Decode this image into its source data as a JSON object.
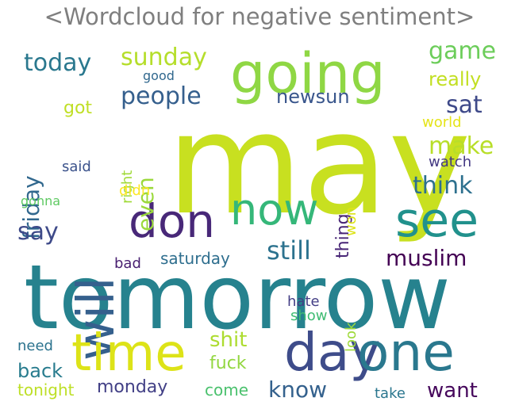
{
  "title": "<Wordcloud for negative sentiment>",
  "words": [
    {
      "text": "may",
      "color": "#c8e020"
    },
    {
      "text": "tomorrow",
      "color": "#26828e"
    },
    {
      "text": "going",
      "color": "#8fd744"
    },
    {
      "text": "will",
      "color": "#35608d"
    },
    {
      "text": "time",
      "color": "#dde318"
    },
    {
      "text": "day",
      "color": "#3e4c8a"
    },
    {
      "text": "one",
      "color": "#2a788e"
    },
    {
      "text": "now",
      "color": "#35b779"
    },
    {
      "text": "see",
      "color": "#21918c"
    },
    {
      "text": "don",
      "color": "#482878"
    },
    {
      "text": "today",
      "color": "#2a788e"
    },
    {
      "text": "sunday",
      "color": "#b5de2b"
    },
    {
      "text": "people",
      "color": "#355f8d"
    },
    {
      "text": "game",
      "color": "#6ccd5a"
    },
    {
      "text": "really",
      "color": "#c2df23"
    },
    {
      "text": "newsun",
      "color": "#39568c"
    },
    {
      "text": "sat",
      "color": "#3e4989"
    },
    {
      "text": "friday",
      "color": "#31688e"
    },
    {
      "text": "got",
      "color": "#c0df25"
    },
    {
      "text": "even",
      "color": "#9bd93c"
    },
    {
      "text": "make",
      "color": "#b8de29"
    },
    {
      "text": "world",
      "color": "#e5e419"
    },
    {
      "text": "said",
      "color": "#3b528b"
    },
    {
      "text": "right",
      "color": "#a0da39"
    },
    {
      "text": "didn",
      "color": "#fde725"
    },
    {
      "text": "watch",
      "color": "#443983"
    },
    {
      "text": "think",
      "color": "#2d708e"
    },
    {
      "text": "thing",
      "color": "#482576"
    },
    {
      "text": "won",
      "color": "#dde318"
    },
    {
      "text": "gonna",
      "color": "#5ec962"
    },
    {
      "text": "say",
      "color": "#3e4a89"
    },
    {
      "text": "still",
      "color": "#2c728e"
    },
    {
      "text": "saturday",
      "color": "#2e6e8e"
    },
    {
      "text": "muslim",
      "color": "#440154"
    },
    {
      "text": "bad",
      "color": "#481f70"
    },
    {
      "text": "hate",
      "color": "#433e85"
    },
    {
      "text": "show",
      "color": "#3fbc73"
    },
    {
      "text": "look",
      "color": "#9fda3a"
    },
    {
      "text": "need",
      "color": "#2c738e"
    },
    {
      "text": "shit",
      "color": "#addc30"
    },
    {
      "text": "back",
      "color": "#287c8e"
    },
    {
      "text": "fuck",
      "color": "#93d741"
    },
    {
      "text": "tonight",
      "color": "#bddf26"
    },
    {
      "text": "monday",
      "color": "#424086"
    },
    {
      "text": "come",
      "color": "#4ac16d"
    },
    {
      "text": "know",
      "color": "#34618d"
    },
    {
      "text": "take",
      "color": "#2a768e"
    },
    {
      "text": "want",
      "color": "#46085c"
    },
    {
      "text": "good",
      "color": "#31688e"
    }
  ]
}
